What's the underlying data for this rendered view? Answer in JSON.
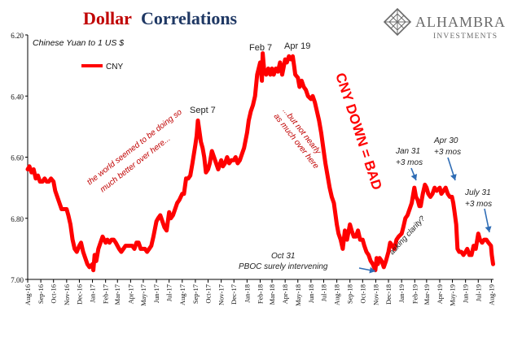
{
  "header": {
    "title_part1": "Dollar",
    "title_part2": "Correlations",
    "title_color_1": "#c00000",
    "title_color_2": "#1f3864"
  },
  "brand": {
    "name": "ALHAMBRA",
    "tagline": "INVESTMENTS",
    "logo_icon": "diamond-lattice-icon",
    "color": "#6b6b6b"
  },
  "chart_data": {
    "type": "line",
    "subtitle": "Chinese Yuan to 1 US $",
    "y_axis": {
      "inverted": true,
      "ylim": [
        6.2,
        7.0
      ],
      "ticks": [
        "6.20",
        "6.40",
        "6.60",
        "6.80",
        "7.00"
      ]
    },
    "x_axis": {
      "ticks": [
        "Aug-16",
        "Sep-16",
        "Oct-16",
        "Nov-16",
        "Dec-16",
        "Jan-17",
        "Feb-17",
        "Mar-17",
        "Apr-17",
        "May-17",
        "Jun-17",
        "Jul-17",
        "Aug-17",
        "Sep-17",
        "Oct-17",
        "Nov-17",
        "Dec-17",
        "Jan-18",
        "Feb-18",
        "Mar-18",
        "Apr-18",
        "May-18",
        "Jun-18",
        "Jul-18",
        "Aug-18",
        "Sep-18",
        "Oct-18",
        "Nov-18",
        "Dec-18",
        "Jan-19",
        "Feb-19",
        "Mar-19",
        "Apr-19",
        "May-19",
        "Jun-19",
        "Jul-19",
        "Aug-19"
      ],
      "range": [
        "2016-08-01",
        "2019-08-06"
      ]
    },
    "legend": {
      "position": "top-left"
    },
    "series": [
      {
        "name": "CNY",
        "color": "#ff0000",
        "points": [
          [
            "2016-08-01",
            6.64
          ],
          [
            "2016-08-05",
            6.63
          ],
          [
            "2016-08-10",
            6.65
          ],
          [
            "2016-08-15",
            6.64
          ],
          [
            "2016-08-20",
            6.67
          ],
          [
            "2016-08-25",
            6.66
          ],
          [
            "2016-08-30",
            6.68
          ],
          [
            "2016-09-05",
            6.68
          ],
          [
            "2016-09-10",
            6.67
          ],
          [
            "2016-09-15",
            6.68
          ],
          [
            "2016-09-20",
            6.68
          ],
          [
            "2016-09-25",
            6.67
          ],
          [
            "2016-10-01",
            6.68
          ],
          [
            "2016-10-05",
            6.71
          ],
          [
            "2016-10-10",
            6.73
          ],
          [
            "2016-10-15",
            6.75
          ],
          [
            "2016-10-20",
            6.77
          ],
          [
            "2016-10-25",
            6.77
          ],
          [
            "2016-11-01",
            6.77
          ],
          [
            "2016-11-05",
            6.79
          ],
          [
            "2016-11-10",
            6.82
          ],
          [
            "2016-11-15",
            6.87
          ],
          [
            "2016-11-20",
            6.9
          ],
          [
            "2016-11-25",
            6.91
          ],
          [
            "2016-12-01",
            6.89
          ],
          [
            "2016-12-05",
            6.88
          ],
          [
            "2016-12-10",
            6.91
          ],
          [
            "2016-12-15",
            6.93
          ],
          [
            "2016-12-20",
            6.95
          ],
          [
            "2016-12-25",
            6.96
          ],
          [
            "2017-01-01",
            6.95
          ],
          [
            "2017-01-03",
            6.97
          ],
          [
            "2017-01-06",
            6.92
          ],
          [
            "2017-01-10",
            6.94
          ],
          [
            "2017-01-15",
            6.9
          ],
          [
            "2017-01-20",
            6.88
          ],
          [
            "2017-01-25",
            6.86
          ],
          [
            "2017-02-01",
            6.88
          ],
          [
            "2017-02-05",
            6.87
          ],
          [
            "2017-02-10",
            6.88
          ],
          [
            "2017-02-15",
            6.87
          ],
          [
            "2017-02-20",
            6.87
          ],
          [
            "2017-02-25",
            6.88
          ],
          [
            "2017-03-01",
            6.89
          ],
          [
            "2017-03-05",
            6.9
          ],
          [
            "2017-03-10",
            6.91
          ],
          [
            "2017-03-15",
            6.9
          ],
          [
            "2017-03-20",
            6.89
          ],
          [
            "2017-03-25",
            6.89
          ],
          [
            "2017-04-01",
            6.89
          ],
          [
            "2017-04-05",
            6.89
          ],
          [
            "2017-04-10",
            6.9
          ],
          [
            "2017-04-15",
            6.88
          ],
          [
            "2017-04-20",
            6.88
          ],
          [
            "2017-04-25",
            6.9
          ],
          [
            "2017-05-01",
            6.9
          ],
          [
            "2017-05-05",
            6.9
          ],
          [
            "2017-05-10",
            6.91
          ],
          [
            "2017-05-15",
            6.9
          ],
          [
            "2017-05-20",
            6.89
          ],
          [
            "2017-05-25",
            6.86
          ],
          [
            "2017-06-01",
            6.81
          ],
          [
            "2017-06-05",
            6.8
          ],
          [
            "2017-06-10",
            6.79
          ],
          [
            "2017-06-15",
            6.81
          ],
          [
            "2017-06-20",
            6.83
          ],
          [
            "2017-06-25",
            6.84
          ],
          [
            "2017-07-01",
            6.78
          ],
          [
            "2017-07-05",
            6.8
          ],
          [
            "2017-07-10",
            6.79
          ],
          [
            "2017-07-15",
            6.77
          ],
          [
            "2017-07-20",
            6.75
          ],
          [
            "2017-07-25",
            6.74
          ],
          [
            "2017-08-01",
            6.72
          ],
          [
            "2017-08-05",
            6.72
          ],
          [
            "2017-08-10",
            6.67
          ],
          [
            "2017-08-15",
            6.67
          ],
          [
            "2017-08-20",
            6.66
          ],
          [
            "2017-08-25",
            6.62
          ],
          [
            "2017-09-01",
            6.56
          ],
          [
            "2017-09-04",
            6.53
          ],
          [
            "2017-09-07",
            6.48
          ],
          [
            "2017-09-10",
            6.51
          ],
          [
            "2017-09-14",
            6.55
          ],
          [
            "2017-09-18",
            6.57
          ],
          [
            "2017-09-22",
            6.6
          ],
          [
            "2017-09-26",
            6.65
          ],
          [
            "2017-10-01",
            6.64
          ],
          [
            "2017-10-05",
            6.62
          ],
          [
            "2017-10-10",
            6.58
          ],
          [
            "2017-10-15",
            6.6
          ],
          [
            "2017-10-20",
            6.62
          ],
          [
            "2017-10-25",
            6.64
          ],
          [
            "2017-11-01",
            6.61
          ],
          [
            "2017-11-05",
            6.63
          ],
          [
            "2017-11-10",
            6.62
          ],
          [
            "2017-11-15",
            6.6
          ],
          [
            "2017-11-20",
            6.62
          ],
          [
            "2017-11-25",
            6.61
          ],
          [
            "2017-12-01",
            6.61
          ],
          [
            "2017-12-05",
            6.6
          ],
          [
            "2017-12-10",
            6.62
          ],
          [
            "2017-12-15",
            6.61
          ],
          [
            "2017-12-20",
            6.59
          ],
          [
            "2017-12-25",
            6.57
          ],
          [
            "2018-01-01",
            6.52
          ],
          [
            "2018-01-05",
            6.48
          ],
          [
            "2018-01-10",
            6.45
          ],
          [
            "2018-01-15",
            6.43
          ],
          [
            "2018-01-20",
            6.4
          ],
          [
            "2018-01-25",
            6.33
          ],
          [
            "2018-02-01",
            6.29
          ],
          [
            "2018-02-05",
            6.35
          ],
          [
            "2018-02-07",
            6.26
          ],
          [
            "2018-02-10",
            6.31
          ],
          [
            "2018-02-15",
            6.33
          ],
          [
            "2018-02-20",
            6.31
          ],
          [
            "2018-02-25",
            6.33
          ],
          [
            "2018-03-01",
            6.31
          ],
          [
            "2018-03-05",
            6.33
          ],
          [
            "2018-03-10",
            6.31
          ],
          [
            "2018-03-15",
            6.32
          ],
          [
            "2018-03-20",
            6.29
          ],
          [
            "2018-03-25",
            6.33
          ],
          [
            "2018-04-01",
            6.28
          ],
          [
            "2018-04-05",
            6.29
          ],
          [
            "2018-04-10",
            6.27
          ],
          [
            "2018-04-15",
            6.28
          ],
          [
            "2018-04-19",
            6.27
          ],
          [
            "2018-04-22",
            6.3
          ],
          [
            "2018-04-25",
            6.33
          ],
          [
            "2018-05-01",
            6.34
          ],
          [
            "2018-05-05",
            6.37
          ],
          [
            "2018-05-10",
            6.35
          ],
          [
            "2018-05-15",
            6.37
          ],
          [
            "2018-05-20",
            6.38
          ],
          [
            "2018-05-25",
            6.4
          ],
          [
            "2018-06-01",
            6.41
          ],
          [
            "2018-06-05",
            6.4
          ],
          [
            "2018-06-10",
            6.42
          ],
          [
            "2018-06-15",
            6.45
          ],
          [
            "2018-06-20",
            6.48
          ],
          [
            "2018-06-25",
            6.52
          ],
          [
            "2018-07-01",
            6.58
          ],
          [
            "2018-07-05",
            6.62
          ],
          [
            "2018-07-10",
            6.66
          ],
          [
            "2018-07-15",
            6.7
          ],
          [
            "2018-07-20",
            6.73
          ],
          [
            "2018-07-25",
            6.75
          ],
          [
            "2018-08-01",
            6.82
          ],
          [
            "2018-08-05",
            6.85
          ],
          [
            "2018-08-10",
            6.87
          ],
          [
            "2018-08-15",
            6.9
          ],
          [
            "2018-08-20",
            6.84
          ],
          [
            "2018-08-25",
            6.87
          ],
          [
            "2018-09-01",
            6.82
          ],
          [
            "2018-09-05",
            6.84
          ],
          [
            "2018-09-10",
            6.86
          ],
          [
            "2018-09-15",
            6.86
          ],
          [
            "2018-09-20",
            6.84
          ],
          [
            "2018-09-25",
            6.87
          ],
          [
            "2018-10-01",
            6.87
          ],
          [
            "2018-10-05",
            6.89
          ],
          [
            "2018-10-10",
            6.91
          ],
          [
            "2018-10-15",
            6.92
          ],
          [
            "2018-10-20",
            6.94
          ],
          [
            "2018-10-25",
            6.95
          ],
          [
            "2018-10-31",
            6.97
          ],
          [
            "2018-11-03",
            6.93
          ],
          [
            "2018-11-06",
            6.95
          ],
          [
            "2018-11-10",
            6.93
          ],
          [
            "2018-11-15",
            6.94
          ],
          [
            "2018-11-20",
            6.96
          ],
          [
            "2018-11-25",
            6.94
          ],
          [
            "2018-12-01",
            6.91
          ],
          [
            "2018-12-05",
            6.88
          ],
          [
            "2018-12-10",
            6.89
          ],
          [
            "2018-12-15",
            6.9
          ],
          [
            "2018-12-20",
            6.87
          ],
          [
            "2018-12-25",
            6.86
          ],
          [
            "2019-01-01",
            6.85
          ],
          [
            "2019-01-05",
            6.83
          ],
          [
            "2019-01-10",
            6.8
          ],
          [
            "2019-01-15",
            6.79
          ],
          [
            "2019-01-20",
            6.77
          ],
          [
            "2019-01-25",
            6.75
          ],
          [
            "2019-01-31",
            6.7
          ],
          [
            "2019-02-04",
            6.73
          ],
          [
            "2019-02-08",
            6.74
          ],
          [
            "2019-02-12",
            6.76
          ],
          [
            "2019-02-15",
            6.76
          ],
          [
            "2019-02-20",
            6.72
          ],
          [
            "2019-02-25",
            6.69
          ],
          [
            "2019-03-01",
            6.7
          ],
          [
            "2019-03-05",
            6.72
          ],
          [
            "2019-03-10",
            6.73
          ],
          [
            "2019-03-15",
            6.72
          ],
          [
            "2019-03-20",
            6.7
          ],
          [
            "2019-03-25",
            6.71
          ],
          [
            "2019-04-01",
            6.7
          ],
          [
            "2019-04-05",
            6.72
          ],
          [
            "2019-04-10",
            6.71
          ],
          [
            "2019-04-15",
            6.7
          ],
          [
            "2019-04-20",
            6.72
          ],
          [
            "2019-04-25",
            6.73
          ],
          [
            "2019-04-30",
            6.73
          ],
          [
            "2019-05-03",
            6.75
          ],
          [
            "2019-05-06",
            6.78
          ],
          [
            "2019-05-10",
            6.82
          ],
          [
            "2019-05-13",
            6.9
          ],
          [
            "2019-05-17",
            6.91
          ],
          [
            "2019-05-22",
            6.91
          ],
          [
            "2019-05-27",
            6.92
          ],
          [
            "2019-06-01",
            6.91
          ],
          [
            "2019-06-05",
            6.9
          ],
          [
            "2019-06-10",
            6.92
          ],
          [
            "2019-06-15",
            6.92
          ],
          [
            "2019-06-20",
            6.89
          ],
          [
            "2019-06-25",
            6.9
          ],
          [
            "2019-07-01",
            6.85
          ],
          [
            "2019-07-05",
            6.87
          ],
          [
            "2019-07-10",
            6.88
          ],
          [
            "2019-07-15",
            6.87
          ],
          [
            "2019-07-20",
            6.87
          ],
          [
            "2019-07-25",
            6.88
          ],
          [
            "2019-07-31",
            6.89
          ],
          [
            "2019-08-02",
            6.92
          ],
          [
            "2019-08-05",
            6.95
          ]
        ]
      }
    ],
    "annotations": [
      {
        "id": "sept7",
        "text": "Sept 7",
        "color": "#222222",
        "italic": false,
        "rotate": 0
      },
      {
        "id": "feb7",
        "text": "Feb 7",
        "color": "#222222",
        "italic": false,
        "rotate": 0
      },
      {
        "id": "apr19",
        "text": "Apr 19",
        "color": "#222222",
        "italic": false,
        "rotate": 0
      },
      {
        "id": "world_line1",
        "text": "the world seemed to be doing so",
        "color": "#c00000",
        "italic": true,
        "rotate": -38
      },
      {
        "id": "world_line2",
        "text": "much better over here...",
        "color": "#c00000",
        "italic": true,
        "rotate": -38
      },
      {
        "id": "butnot_line1",
        "text": "...but not nearly",
        "color": "#c00000",
        "italic": true,
        "rotate": 52
      },
      {
        "id": "butnot_line2",
        "text": "as much over here",
        "color": "#c00000",
        "italic": true,
        "rotate": 52
      },
      {
        "id": "cnydown",
        "text": "CNY DOWN = BAD",
        "color": "#ff0000",
        "italic": false,
        "rotate": 72
      },
      {
        "id": "jan31_line1",
        "text": "Jan 31",
        "color": "#222222",
        "italic": true,
        "rotate": 0
      },
      {
        "id": "jan31_line2",
        "text": "+3 mos",
        "color": "#222222",
        "italic": true,
        "rotate": 0
      },
      {
        "id": "apr30_line1",
        "text": "Apr 30",
        "color": "#222222",
        "italic": true,
        "rotate": 0
      },
      {
        "id": "apr30_line2",
        "text": "+3 mos",
        "color": "#222222",
        "italic": true,
        "rotate": 0
      },
      {
        "id": "jul31_line1",
        "text": "July 31",
        "color": "#222222",
        "italic": true,
        "rotate": 0
      },
      {
        "id": "jul31_line2",
        "text": "+3 mos",
        "color": "#222222",
        "italic": true,
        "rotate": 0
      },
      {
        "id": "asking",
        "text": "asking clarity?",
        "color": "#222222",
        "italic": true,
        "rotate": -48
      },
      {
        "id": "oct31_line1",
        "text": "Oct 31",
        "color": "#222222",
        "italic": true,
        "rotate": 0
      },
      {
        "id": "oct31_line2",
        "text": "PBOC surely intervening",
        "color": "#222222",
        "italic": true,
        "rotate": 0
      }
    ],
    "arrows": [
      {
        "id": "jan31-arrow",
        "color": "#2f6db5"
      },
      {
        "id": "apr30-arrow",
        "color": "#2f6db5"
      },
      {
        "id": "jul31-arrow",
        "color": "#2f6db5"
      },
      {
        "id": "oct31-arrow",
        "color": "#2f6db5"
      }
    ]
  }
}
